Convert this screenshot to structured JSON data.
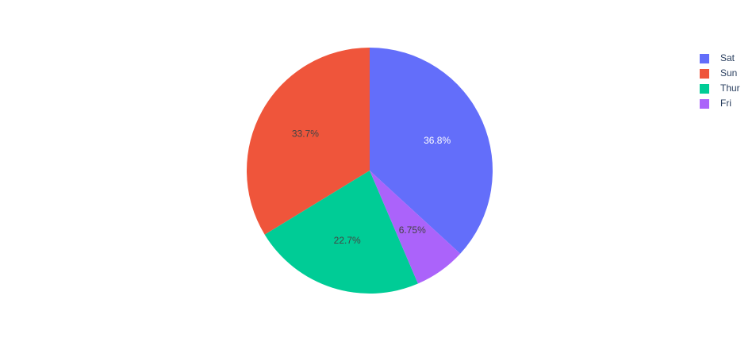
{
  "chart_data": {
    "type": "pie",
    "categories": [
      "Sat",
      "Sun",
      "Thur",
      "Fri"
    ],
    "values": [
      36.8,
      33.7,
      22.7,
      6.75
    ],
    "value_labels": [
      "36.8%",
      "33.7%",
      "22.7%",
      "6.75%"
    ],
    "colors": [
      "#636efa",
      "#ef553b",
      "#00cc96",
      "#ab63fa"
    ],
    "text_colors": [
      "#ffffff",
      "#444444",
      "#444444",
      "#444444"
    ],
    "legend": "top-right"
  }
}
